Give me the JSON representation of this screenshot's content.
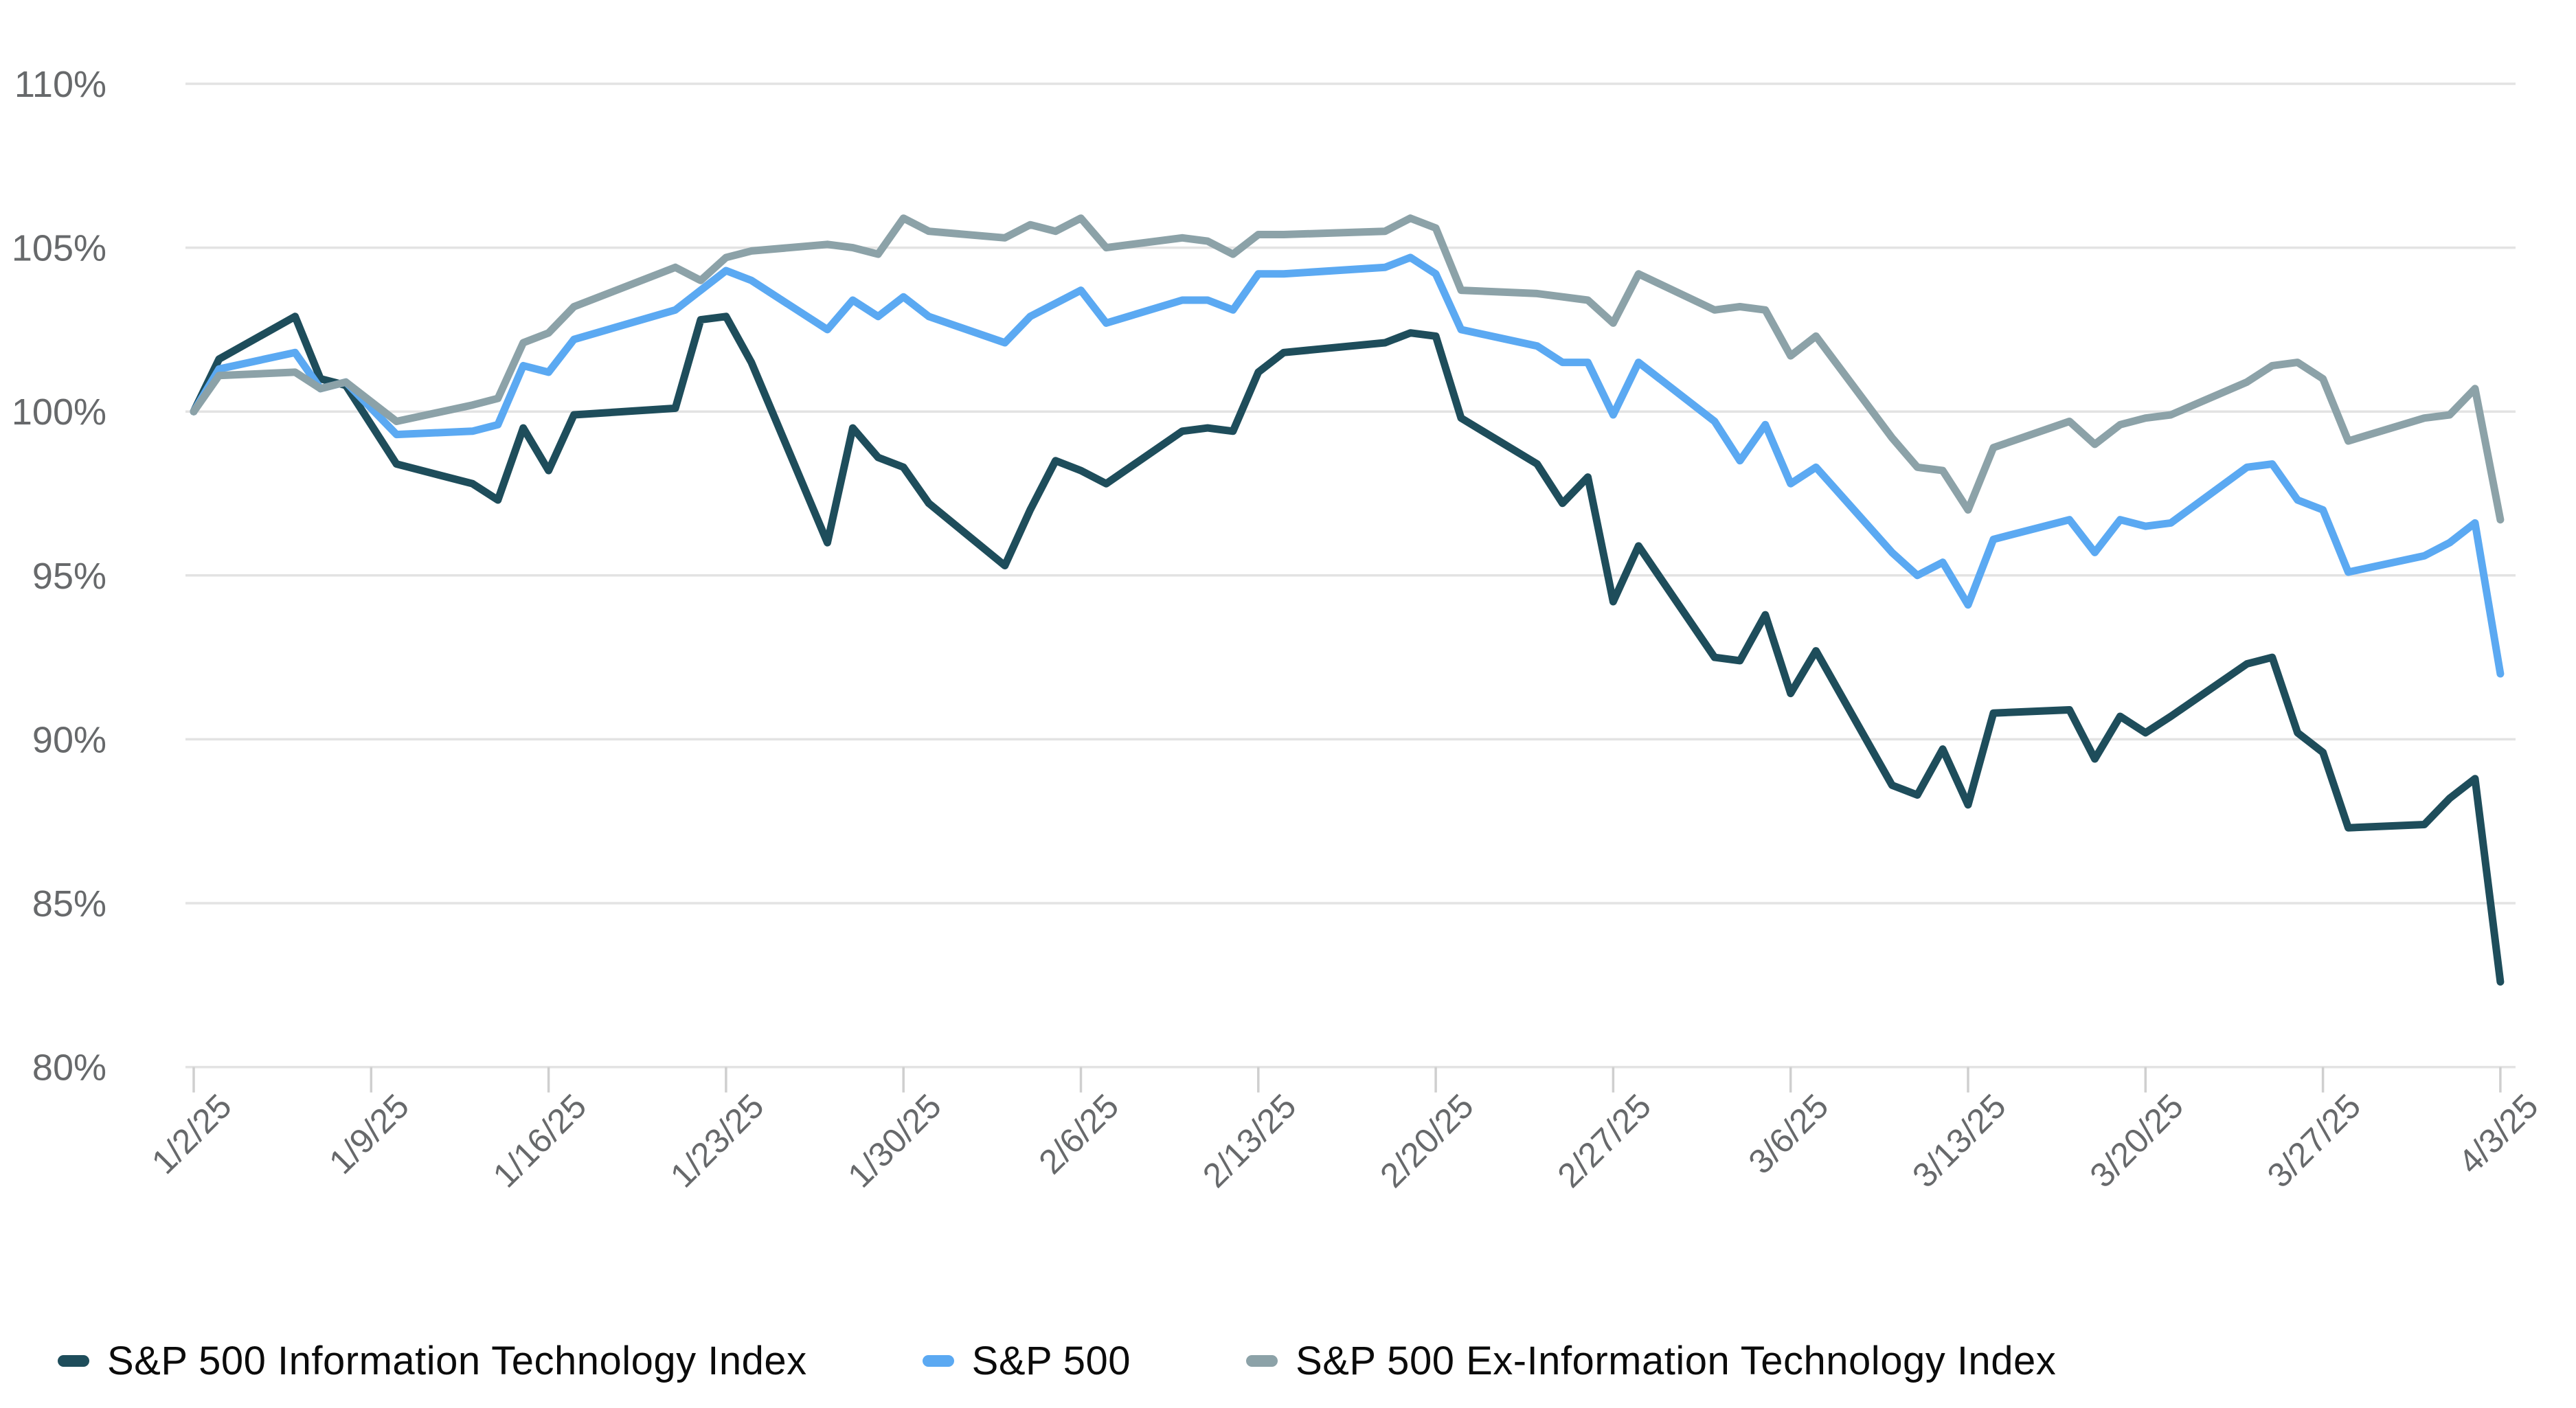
{
  "chart_data": {
    "type": "line",
    "title": "",
    "xlabel": "",
    "ylabel": "",
    "ylim": [
      80,
      110
    ],
    "grid": "horizontal",
    "legend_position": "bottom",
    "y_ticks": [
      110,
      105,
      100,
      95,
      90,
      85,
      80
    ],
    "y_tick_labels": [
      "110%",
      "105%",
      "100%",
      "95%",
      "90%",
      "85%",
      "80%"
    ],
    "x_tick_labels": [
      "1/2/25",
      "1/9/25",
      "1/16/25",
      "1/23/25",
      "1/30/25",
      "2/6/25",
      "2/13/25",
      "2/20/25",
      "2/27/25",
      "3/6/25",
      "3/13/25",
      "3/20/25",
      "3/27/25",
      "4/3/25"
    ],
    "x": [
      "1/2/25",
      "1/3/25",
      "1/6/25",
      "1/7/25",
      "1/8/25",
      "1/10/25",
      "1/13/25",
      "1/14/25",
      "1/15/25",
      "1/16/25",
      "1/17/25",
      "1/21/25",
      "1/22/25",
      "1/23/25",
      "1/24/25",
      "1/27/25",
      "1/28/25",
      "1/29/25",
      "1/30/25",
      "1/31/25",
      "2/3/25",
      "2/4/25",
      "2/5/25",
      "2/6/25",
      "2/7/25",
      "2/10/25",
      "2/11/25",
      "2/12/25",
      "2/13/25",
      "2/14/25",
      "2/18/25",
      "2/19/25",
      "2/20/25",
      "2/21/25",
      "2/24/25",
      "2/25/25",
      "2/26/25",
      "2/27/25",
      "2/28/25",
      "3/3/25",
      "3/4/25",
      "3/5/25",
      "3/6/25",
      "3/7/25",
      "3/10/25",
      "3/11/25",
      "3/12/25",
      "3/13/25",
      "3/14/25",
      "3/17/25",
      "3/18/25",
      "3/19/25",
      "3/20/25",
      "3/21/25",
      "3/24/25",
      "3/25/25",
      "3/26/25",
      "3/27/25",
      "3/28/25",
      "3/31/25",
      "4/1/25",
      "4/2/25",
      "4/3/25"
    ],
    "series": [
      {
        "name": "S&P 500 Information Technology Index",
        "color": "#1e4d5b",
        "values": [
          100.0,
          101.6,
          102.9,
          101.0,
          100.8,
          98.4,
          97.8,
          97.3,
          99.5,
          98.2,
          99.9,
          100.1,
          102.8,
          102.9,
          101.5,
          96.0,
          99.5,
          98.6,
          98.3,
          97.2,
          95.3,
          97.0,
          98.5,
          98.2,
          97.8,
          99.4,
          99.5,
          99.4,
          101.2,
          101.8,
          102.1,
          102.4,
          102.3,
          99.8,
          98.4,
          97.2,
          98.0,
          94.2,
          95.9,
          92.5,
          92.4,
          93.8,
          91.4,
          92.7,
          88.6,
          88.3,
          89.7,
          88.0,
          90.8,
          90.9,
          89.4,
          90.7,
          90.2,
          90.7,
          92.3,
          92.5,
          90.2,
          89.6,
          87.3,
          87.4,
          88.2,
          88.8,
          82.6
        ]
      },
      {
        "name": "S&P 500",
        "color": "#5ba9f2",
        "values": [
          100.0,
          101.3,
          101.8,
          100.7,
          100.9,
          99.3,
          99.4,
          99.6,
          101.4,
          101.2,
          102.2,
          103.1,
          103.7,
          104.3,
          104.0,
          102.5,
          103.4,
          102.9,
          103.5,
          102.9,
          102.1,
          102.9,
          103.3,
          103.7,
          102.7,
          103.4,
          103.4,
          103.1,
          104.2,
          104.2,
          104.4,
          104.7,
          104.2,
          102.5,
          102.0,
          101.5,
          101.5,
          99.9,
          101.5,
          99.7,
          98.5,
          99.6,
          97.8,
          98.3,
          95.7,
          95.0,
          95.4,
          94.1,
          96.1,
          96.7,
          95.7,
          96.7,
          96.5,
          96.6,
          98.3,
          98.4,
          97.3,
          97.0,
          95.1,
          95.6,
          96.0,
          96.6,
          92.0
        ]
      },
      {
        "name": "S&P 500 Ex-Information Technology Index",
        "color": "#8ca2a8",
        "values": [
          100.0,
          101.1,
          101.2,
          100.7,
          100.9,
          99.7,
          100.2,
          100.4,
          102.1,
          102.4,
          103.2,
          104.4,
          104.0,
          104.7,
          104.9,
          105.1,
          105.0,
          104.8,
          105.9,
          105.5,
          105.3,
          105.7,
          105.5,
          105.9,
          105.0,
          105.3,
          105.2,
          104.8,
          105.4,
          105.4,
          105.5,
          105.9,
          105.6,
          103.7,
          103.6,
          103.5,
          103.4,
          102.7,
          104.2,
          103.1,
          103.2,
          103.1,
          101.7,
          102.3,
          99.2,
          98.3,
          98.2,
          97.0,
          98.9,
          99.7,
          99.0,
          99.6,
          99.8,
          99.9,
          100.9,
          101.4,
          101.5,
          101.0,
          99.1,
          99.8,
          99.9,
          100.7,
          96.7
        ]
      }
    ]
  },
  "style": {
    "gridline_color": "#e3e3e3",
    "tick_color": "#cfcfcf",
    "axis_text_color": "#67696b",
    "legend_text_color": "#0b0b0b",
    "background": "#ffffff",
    "line_width": 11
  }
}
